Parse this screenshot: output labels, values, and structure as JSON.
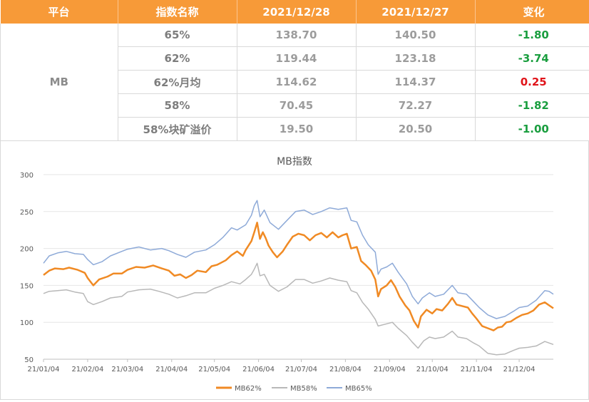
{
  "table": {
    "headers": [
      "平台",
      "指数名称",
      "2021/12/28",
      "2021/12/27",
      "变化"
    ],
    "platform": "MB",
    "rows": [
      {
        "name": "65%",
        "d1": "138.70",
        "d2": "140.50",
        "chg": "-1.80"
      },
      {
        "name": "62%",
        "d1": "119.44",
        "d2": "123.18",
        "chg": "-3.74"
      },
      {
        "name": "62%月均",
        "d1": "114.62",
        "d2": "114.37",
        "chg": "0.25"
      },
      {
        "name": "58%",
        "d1": "70.45",
        "d2": "72.27",
        "chg": "-1.82"
      },
      {
        "name": "58%块矿溢价",
        "d1": "19.50",
        "d2": "20.50",
        "chg": "-1.00"
      }
    ]
  },
  "chart_data": {
    "type": "line",
    "title": "MB指数",
    "ylim": [
      50,
      300
    ],
    "yticks": [
      "50",
      "100",
      "150",
      "200",
      "250",
      "300"
    ],
    "xlim": [
      "2021-01-04",
      "2021-12-28"
    ],
    "xticks": [
      "21/01/04",
      "21/02/04",
      "21/03/04",
      "21/04/04",
      "21/05/04",
      "21/06/04",
      "21/07/04",
      "21/08/04",
      "21/09/04",
      "21/10/04",
      "21/11/04",
      "21/12/04"
    ],
    "xtick_dates": [
      "2021-01-04",
      "2021-02-04",
      "2021-03-04",
      "2021-04-04",
      "2021-05-04",
      "2021-06-04",
      "2021-07-04",
      "2021-08-04",
      "2021-09-04",
      "2021-10-04",
      "2021-11-04",
      "2021-12-04"
    ],
    "grid": "horizontal",
    "legend": "bottom",
    "series": [
      {
        "name": "MB62%",
        "color": "#f08a24",
        "points": [
          [
            "2021-01-04",
            164
          ],
          [
            "2021-01-08",
            170
          ],
          [
            "2021-01-12",
            173
          ],
          [
            "2021-01-18",
            172
          ],
          [
            "2021-01-22",
            174
          ],
          [
            "2021-01-28",
            171
          ],
          [
            "2021-02-02",
            167
          ],
          [
            "2021-02-04",
            160
          ],
          [
            "2021-02-06",
            155
          ],
          [
            "2021-02-08",
            150
          ],
          [
            "2021-02-12",
            158
          ],
          [
            "2021-02-18",
            162
          ],
          [
            "2021-02-22",
            166
          ],
          [
            "2021-02-28",
            166
          ],
          [
            "2021-03-04",
            171
          ],
          [
            "2021-03-10",
            175
          ],
          [
            "2021-03-16",
            174
          ],
          [
            "2021-03-22",
            177
          ],
          [
            "2021-03-28",
            173
          ],
          [
            "2021-04-02",
            170
          ],
          [
            "2021-04-06",
            163
          ],
          [
            "2021-04-10",
            165
          ],
          [
            "2021-04-14",
            160
          ],
          [
            "2021-04-18",
            164
          ],
          [
            "2021-04-22",
            170
          ],
          [
            "2021-04-28",
            168
          ],
          [
            "2021-05-02",
            176
          ],
          [
            "2021-05-06",
            178
          ],
          [
            "2021-05-08",
            180
          ],
          [
            "2021-05-12",
            184
          ],
          [
            "2021-05-16",
            191
          ],
          [
            "2021-05-20",
            196
          ],
          [
            "2021-05-24",
            190
          ],
          [
            "2021-05-26",
            198
          ],
          [
            "2021-05-30",
            210
          ],
          [
            "2021-06-01",
            222
          ],
          [
            "2021-06-03",
            235
          ],
          [
            "2021-06-05",
            213
          ],
          [
            "2021-06-07",
            222
          ],
          [
            "2021-06-09",
            214
          ],
          [
            "2021-06-11",
            204
          ],
          [
            "2021-06-14",
            195
          ],
          [
            "2021-06-17",
            188
          ],
          [
            "2021-06-21",
            196
          ],
          [
            "2021-06-24",
            205
          ],
          [
            "2021-06-28",
            216
          ],
          [
            "2021-07-02",
            220
          ],
          [
            "2021-07-06",
            218
          ],
          [
            "2021-07-10",
            211
          ],
          [
            "2021-07-14",
            218
          ],
          [
            "2021-07-18",
            221
          ],
          [
            "2021-07-22",
            215
          ],
          [
            "2021-07-26",
            222
          ],
          [
            "2021-07-30",
            215
          ],
          [
            "2021-08-02",
            218
          ],
          [
            "2021-08-05",
            220
          ],
          [
            "2021-08-08",
            200
          ],
          [
            "2021-08-12",
            202
          ],
          [
            "2021-08-15",
            183
          ],
          [
            "2021-08-18",
            178
          ],
          [
            "2021-08-22",
            170
          ],
          [
            "2021-08-25",
            158
          ],
          [
            "2021-08-27",
            135
          ],
          [
            "2021-08-29",
            145
          ],
          [
            "2021-09-02",
            150
          ],
          [
            "2021-09-05",
            157
          ],
          [
            "2021-09-08",
            148
          ],
          [
            "2021-09-11",
            135
          ],
          [
            "2021-09-15",
            123
          ],
          [
            "2021-09-18",
            116
          ],
          [
            "2021-09-21",
            102
          ],
          [
            "2021-09-24",
            93
          ],
          [
            "2021-09-26",
            108
          ],
          [
            "2021-09-30",
            117
          ],
          [
            "2021-10-04",
            112
          ],
          [
            "2021-10-07",
            118
          ],
          [
            "2021-10-11",
            116
          ],
          [
            "2021-10-15",
            125
          ],
          [
            "2021-10-18",
            133
          ],
          [
            "2021-10-21",
            124
          ],
          [
            "2021-10-25",
            122
          ],
          [
            "2021-10-29",
            120
          ],
          [
            "2021-11-01",
            112
          ],
          [
            "2021-11-04",
            105
          ],
          [
            "2021-11-08",
            95
          ],
          [
            "2021-11-12",
            92
          ],
          [
            "2021-11-16",
            89
          ],
          [
            "2021-11-19",
            93
          ],
          [
            "2021-11-22",
            94
          ],
          [
            "2021-11-25",
            100
          ],
          [
            "2021-11-28",
            101
          ],
          [
            "2021-12-02",
            106
          ],
          [
            "2021-12-06",
            110
          ],
          [
            "2021-12-10",
            112
          ],
          [
            "2021-12-14",
            116
          ],
          [
            "2021-12-18",
            124
          ],
          [
            "2021-12-22",
            127
          ],
          [
            "2021-12-25",
            123
          ],
          [
            "2021-12-28",
            119
          ]
        ]
      },
      {
        "name": "MB58%",
        "color": "#b8b8b8",
        "points": [
          [
            "2021-01-04",
            139
          ],
          [
            "2021-01-08",
            142
          ],
          [
            "2021-01-14",
            143
          ],
          [
            "2021-01-20",
            144
          ],
          [
            "2021-01-26",
            141
          ],
          [
            "2021-02-01",
            139
          ],
          [
            "2021-02-04",
            128
          ],
          [
            "2021-02-08",
            124
          ],
          [
            "2021-02-14",
            128
          ],
          [
            "2021-02-20",
            133
          ],
          [
            "2021-02-28",
            135
          ],
          [
            "2021-03-04",
            141
          ],
          [
            "2021-03-12",
            144
          ],
          [
            "2021-03-20",
            145
          ],
          [
            "2021-03-26",
            142
          ],
          [
            "2021-04-02",
            138
          ],
          [
            "2021-04-08",
            133
          ],
          [
            "2021-04-14",
            136
          ],
          [
            "2021-04-20",
            140
          ],
          [
            "2021-04-28",
            140
          ],
          [
            "2021-05-04",
            146
          ],
          [
            "2021-05-10",
            150
          ],
          [
            "2021-05-16",
            155
          ],
          [
            "2021-05-22",
            152
          ],
          [
            "2021-05-26",
            158
          ],
          [
            "2021-05-30",
            165
          ],
          [
            "2021-06-01",
            172
          ],
          [
            "2021-06-03",
            180
          ],
          [
            "2021-06-05",
            163
          ],
          [
            "2021-06-08",
            165
          ],
          [
            "2021-06-12",
            150
          ],
          [
            "2021-06-18",
            142
          ],
          [
            "2021-06-24",
            148
          ],
          [
            "2021-06-30",
            158
          ],
          [
            "2021-07-06",
            158
          ],
          [
            "2021-07-12",
            153
          ],
          [
            "2021-07-18",
            156
          ],
          [
            "2021-07-24",
            160
          ],
          [
            "2021-07-30",
            157
          ],
          [
            "2021-08-05",
            155
          ],
          [
            "2021-08-08",
            143
          ],
          [
            "2021-08-12",
            140
          ],
          [
            "2021-08-16",
            127
          ],
          [
            "2021-08-20",
            118
          ],
          [
            "2021-08-25",
            104
          ],
          [
            "2021-08-27",
            95
          ],
          [
            "2021-09-02",
            98
          ],
          [
            "2021-09-06",
            100
          ],
          [
            "2021-09-10",
            92
          ],
          [
            "2021-09-16",
            82
          ],
          [
            "2021-09-20",
            73
          ],
          [
            "2021-09-24",
            65
          ],
          [
            "2021-09-28",
            75
          ],
          [
            "2021-10-02",
            80
          ],
          [
            "2021-10-06",
            78
          ],
          [
            "2021-10-12",
            80
          ],
          [
            "2021-10-18",
            88
          ],
          [
            "2021-10-22",
            80
          ],
          [
            "2021-10-28",
            78
          ],
          [
            "2021-11-02",
            72
          ],
          [
            "2021-11-06",
            68
          ],
          [
            "2021-11-12",
            58
          ],
          [
            "2021-11-18",
            56
          ],
          [
            "2021-11-24",
            57
          ],
          [
            "2021-11-30",
            62
          ],
          [
            "2021-12-04",
            65
          ],
          [
            "2021-12-10",
            66
          ],
          [
            "2021-12-16",
            68
          ],
          [
            "2021-12-22",
            74
          ],
          [
            "2021-12-25",
            72
          ],
          [
            "2021-12-28",
            70
          ]
        ]
      },
      {
        "name": "MB65%",
        "color": "#8eaad8",
        "points": [
          [
            "2021-01-04",
            180
          ],
          [
            "2021-01-08",
            190
          ],
          [
            "2021-01-14",
            194
          ],
          [
            "2021-01-20",
            196
          ],
          [
            "2021-01-26",
            193
          ],
          [
            "2021-02-01",
            192
          ],
          [
            "2021-02-04",
            185
          ],
          [
            "2021-02-08",
            178
          ],
          [
            "2021-02-14",
            182
          ],
          [
            "2021-02-20",
            190
          ],
          [
            "2021-02-28",
            196
          ],
          [
            "2021-03-04",
            199
          ],
          [
            "2021-03-12",
            202
          ],
          [
            "2021-03-20",
            198
          ],
          [
            "2021-03-28",
            200
          ],
          [
            "2021-04-02",
            197
          ],
          [
            "2021-04-08",
            192
          ],
          [
            "2021-04-14",
            188
          ],
          [
            "2021-04-20",
            195
          ],
          [
            "2021-04-28",
            198
          ],
          [
            "2021-05-04",
            205
          ],
          [
            "2021-05-10",
            215
          ],
          [
            "2021-05-16",
            228
          ],
          [
            "2021-05-20",
            225
          ],
          [
            "2021-05-26",
            232
          ],
          [
            "2021-05-30",
            245
          ],
          [
            "2021-06-01",
            258
          ],
          [
            "2021-06-03",
            265
          ],
          [
            "2021-06-05",
            243
          ],
          [
            "2021-06-08",
            252
          ],
          [
            "2021-06-12",
            235
          ],
          [
            "2021-06-18",
            226
          ],
          [
            "2021-06-24",
            238
          ],
          [
            "2021-06-30",
            250
          ],
          [
            "2021-07-06",
            252
          ],
          [
            "2021-07-12",
            246
          ],
          [
            "2021-07-18",
            250
          ],
          [
            "2021-07-24",
            255
          ],
          [
            "2021-07-30",
            253
          ],
          [
            "2021-08-05",
            255
          ],
          [
            "2021-08-08",
            238
          ],
          [
            "2021-08-12",
            236
          ],
          [
            "2021-08-16",
            218
          ],
          [
            "2021-08-20",
            205
          ],
          [
            "2021-08-25",
            195
          ],
          [
            "2021-08-27",
            165
          ],
          [
            "2021-08-29",
            172
          ],
          [
            "2021-09-02",
            175
          ],
          [
            "2021-09-06",
            180
          ],
          [
            "2021-09-10",
            168
          ],
          [
            "2021-09-16",
            152
          ],
          [
            "2021-09-20",
            135
          ],
          [
            "2021-09-24",
            125
          ],
          [
            "2021-09-27",
            133
          ],
          [
            "2021-10-02",
            140
          ],
          [
            "2021-10-06",
            135
          ],
          [
            "2021-10-12",
            138
          ],
          [
            "2021-10-18",
            150
          ],
          [
            "2021-10-22",
            140
          ],
          [
            "2021-10-28",
            138
          ],
          [
            "2021-11-02",
            128
          ],
          [
            "2021-11-06",
            120
          ],
          [
            "2021-11-12",
            110
          ],
          [
            "2021-11-18",
            105
          ],
          [
            "2021-11-24",
            108
          ],
          [
            "2021-11-30",
            115
          ],
          [
            "2021-12-04",
            120
          ],
          [
            "2021-12-10",
            122
          ],
          [
            "2021-12-16",
            130
          ],
          [
            "2021-12-22",
            143
          ],
          [
            "2021-12-25",
            142
          ],
          [
            "2021-12-28",
            138
          ]
        ]
      }
    ]
  }
}
